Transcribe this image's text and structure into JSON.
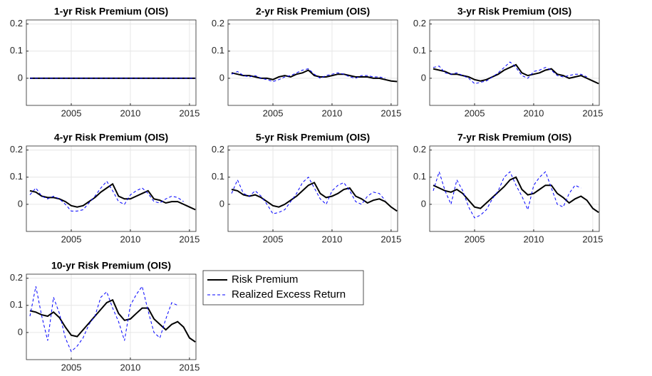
{
  "chart_data": [
    {
      "type": "line",
      "title": "1-yr  Risk Premium (OIS)",
      "xlim": [
        2001.2,
        2015.55
      ],
      "ylim": [
        -0.1,
        0.215
      ],
      "xticks": [
        2005,
        2010,
        2015
      ],
      "yticks": [
        0,
        0.1,
        0.2
      ],
      "grid": true,
      "x": [
        2001.5,
        2002,
        2002.5,
        2003,
        2003.5,
        2004,
        2004.5,
        2005,
        2005.5,
        2006,
        2006.5,
        2007,
        2007.5,
        2008,
        2008.5,
        2009,
        2009.5,
        2010,
        2010.5,
        2011,
        2011.5,
        2012,
        2012.5,
        2013,
        2013.5,
        2014,
        2014.5,
        2015,
        2015.5
      ],
      "series": [
        {
          "name": "Risk Premium",
          "color": "#000000",
          "line_style": "solid",
          "values": [
            0,
            0,
            0,
            0,
            0,
            0,
            0,
            0,
            0,
            0,
            0,
            0,
            0,
            0,
            0,
            0,
            0,
            0,
            0,
            0,
            0,
            0,
            0,
            0,
            0,
            0,
            0,
            0,
            0
          ]
        },
        {
          "name": "Realized Excess Return",
          "color": "#0000ff",
          "line_style": "dashed",
          "values": [
            0,
            0,
            0,
            0,
            0,
            0,
            0,
            0,
            0,
            0,
            0,
            0,
            0,
            0,
            0,
            0,
            0,
            0,
            0,
            0,
            0,
            0,
            0,
            0,
            0,
            0,
            0,
            0,
            0
          ]
        }
      ]
    },
    {
      "type": "line",
      "title": "2-yr  Risk Premium (OIS)",
      "xlim": [
        2001.2,
        2015.55
      ],
      "ylim": [
        -0.1,
        0.215
      ],
      "xticks": [
        2005,
        2010,
        2015
      ],
      "yticks": [
        0,
        0.1,
        0.2
      ],
      "grid": true,
      "x": [
        2001.5,
        2002,
        2002.5,
        2003,
        2003.5,
        2004,
        2004.5,
        2005,
        2005.5,
        2006,
        2006.5,
        2007,
        2007.5,
        2008,
        2008.5,
        2009,
        2009.5,
        2010,
        2010.5,
        2011,
        2011.5,
        2012,
        2012.5,
        2013,
        2013.5,
        2014,
        2014.5,
        2015,
        2015.5
      ],
      "series": [
        {
          "name": "Risk Premium",
          "color": "#000000",
          "line_style": "solid",
          "values": [
            0.02,
            0.015,
            0.01,
            0.01,
            0.005,
            0,
            0,
            -0.005,
            0.005,
            0.01,
            0.005,
            0.015,
            0.02,
            0.03,
            0.01,
            0.005,
            0.005,
            0.01,
            0.015,
            0.015,
            0.01,
            0.005,
            0.005,
            0.005,
            0,
            0,
            -0.005,
            -0.01,
            -0.012
          ]
        },
        {
          "name": "Realized Excess Return",
          "color": "#0000ff",
          "line_style": "dashed",
          "values": [
            0.015,
            0.025,
            0.01,
            0.005,
            0.01,
            0,
            -0.005,
            -0.012,
            -0.005,
            0.005,
            0.01,
            0.02,
            0.03,
            0.035,
            0.015,
            0,
            0.01,
            0.015,
            0.02,
            0.015,
            0.005,
            0,
            0.01,
            0.01,
            0.005,
            0.005,
            0,
            null,
            null
          ]
        }
      ]
    },
    {
      "type": "line",
      "title": "3-yr  Risk Premium (OIS)",
      "xlim": [
        2001.2,
        2015.55
      ],
      "ylim": [
        -0.1,
        0.215
      ],
      "xticks": [
        2005,
        2010,
        2015
      ],
      "yticks": [
        0,
        0.1,
        0.2
      ],
      "grid": true,
      "x": [
        2001.5,
        2002,
        2002.5,
        2003,
        2003.5,
        2004,
        2004.5,
        2005,
        2005.5,
        2006,
        2006.5,
        2007,
        2007.5,
        2008,
        2008.5,
        2009,
        2009.5,
        2010,
        2010.5,
        2011,
        2011.5,
        2012,
        2012.5,
        2013,
        2013.5,
        2014,
        2014.5,
        2015,
        2015.5
      ],
      "series": [
        {
          "name": "Risk Premium",
          "color": "#000000",
          "line_style": "solid",
          "values": [
            0.035,
            0.03,
            0.025,
            0.015,
            0.015,
            0.01,
            0.005,
            -0.005,
            -0.01,
            -0.005,
            0.005,
            0.015,
            0.03,
            0.04,
            0.05,
            0.02,
            0.01,
            0.015,
            0.02,
            0.03,
            0.035,
            0.015,
            0.01,
            0,
            0.005,
            0.01,
            0,
            -0.01,
            -0.02
          ]
        },
        {
          "name": "Realized Excess Return",
          "color": "#0000ff",
          "line_style": "dashed",
          "values": [
            0.04,
            0.045,
            0.02,
            0.015,
            0.02,
            0.01,
            0,
            -0.02,
            -0.015,
            -0.01,
            0.005,
            0.02,
            0.04,
            0.06,
            0.04,
            0.01,
            0,
            0.025,
            0.03,
            0.04,
            0.03,
            0.01,
            0.005,
            0.01,
            0.015,
            0.015,
            0.005,
            null,
            null
          ]
        }
      ]
    },
    {
      "type": "line",
      "title": "4-yr  Risk Premium (OIS)",
      "xlim": [
        2001.2,
        2015.55
      ],
      "ylim": [
        -0.1,
        0.215
      ],
      "xticks": [
        2005,
        2010,
        2015
      ],
      "yticks": [
        0,
        0.1,
        0.2
      ],
      "grid": true,
      "x": [
        2001.5,
        2002,
        2002.5,
        2003,
        2003.5,
        2004,
        2004.5,
        2005,
        2005.5,
        2006,
        2006.5,
        2007,
        2007.5,
        2008,
        2008.5,
        2009,
        2009.5,
        2010,
        2010.5,
        2011,
        2011.5,
        2012,
        2012.5,
        2013,
        2013.5,
        2014,
        2014.5,
        2015,
        2015.5
      ],
      "series": [
        {
          "name": "Risk Premium",
          "color": "#000000",
          "line_style": "solid",
          "values": [
            0.05,
            0.045,
            0.03,
            0.025,
            0.025,
            0.02,
            0.01,
            -0.005,
            -0.01,
            -0.005,
            0.01,
            0.025,
            0.045,
            0.06,
            0.075,
            0.03,
            0.02,
            0.02,
            0.03,
            0.04,
            0.05,
            0.02,
            0.015,
            0.005,
            0.01,
            0.01,
            0,
            -0.01,
            -0.02
          ]
        },
        {
          "name": "Realized Excess Return",
          "color": "#0000ff",
          "line_style": "dashed",
          "values": [
            0.035,
            0.06,
            0.03,
            0.02,
            0.03,
            0.02,
            0,
            -0.025,
            -0.025,
            -0.02,
            0.005,
            0.03,
            0.06,
            0.085,
            0.05,
            0.01,
            0,
            0.035,
            0.05,
            0.06,
            0.04,
            0.01,
            0.005,
            0.02,
            0.03,
            0.025,
            0.01,
            null,
            null
          ]
        }
      ]
    },
    {
      "type": "line",
      "title": "5-yr  Risk Premium (OIS)",
      "xlim": [
        2001.2,
        2015.55
      ],
      "ylim": [
        -0.1,
        0.215
      ],
      "xticks": [
        2005,
        2010,
        2015
      ],
      "yticks": [
        0,
        0.1,
        0.2
      ],
      "grid": true,
      "x": [
        2001.5,
        2002,
        2002.5,
        2003,
        2003.5,
        2004,
        2004.5,
        2005,
        2005.5,
        2006,
        2006.5,
        2007,
        2007.5,
        2008,
        2008.5,
        2009,
        2009.5,
        2010,
        2010.5,
        2011,
        2011.5,
        2012,
        2012.5,
        2013,
        2013.5,
        2014,
        2014.5,
        2015,
        2015.5
      ],
      "series": [
        {
          "name": "Risk Premium",
          "color": "#000000",
          "line_style": "solid",
          "values": [
            0.055,
            0.05,
            0.035,
            0.03,
            0.035,
            0.025,
            0.01,
            -0.005,
            -0.01,
            0,
            0.015,
            0.03,
            0.05,
            0.07,
            0.08,
            0.04,
            0.025,
            0.03,
            0.04,
            0.055,
            0.06,
            0.03,
            0.02,
            0.005,
            0.015,
            0.02,
            0.01,
            -0.01,
            -0.025
          ]
        },
        {
          "name": "Realized Excess Return",
          "color": "#0000ff",
          "line_style": "dashed",
          "values": [
            0.04,
            0.09,
            0.04,
            0.03,
            0.05,
            0.03,
            0,
            -0.035,
            -0.03,
            -0.02,
            0.01,
            0.04,
            0.08,
            0.1,
            0.06,
            0.02,
            0,
            0.05,
            0.07,
            0.08,
            0.05,
            0.01,
            0,
            0.03,
            0.045,
            0.04,
            0.015,
            null,
            null
          ]
        }
      ]
    },
    {
      "type": "line",
      "title": "7-yr  Risk Premium (OIS)",
      "xlim": [
        2001.2,
        2015.55
      ],
      "ylim": [
        -0.1,
        0.215
      ],
      "xticks": [
        2005,
        2010,
        2015
      ],
      "yticks": [
        0,
        0.1,
        0.2
      ],
      "grid": true,
      "x": [
        2001.5,
        2002,
        2002.5,
        2003,
        2003.5,
        2004,
        2004.5,
        2005,
        2005.5,
        2006,
        2006.5,
        2007,
        2007.5,
        2008,
        2008.5,
        2009,
        2009.5,
        2010,
        2010.5,
        2011,
        2011.5,
        2012,
        2012.5,
        2013,
        2013.5,
        2014,
        2014.5,
        2015,
        2015.5
      ],
      "series": [
        {
          "name": "Risk Premium",
          "color": "#000000",
          "line_style": "solid",
          "values": [
            0.07,
            0.06,
            0.05,
            0.045,
            0.055,
            0.04,
            0.015,
            -0.01,
            -0.015,
            0.005,
            0.025,
            0.045,
            0.065,
            0.09,
            0.1,
            0.055,
            0.035,
            0.04,
            0.055,
            0.07,
            0.07,
            0.04,
            0.025,
            0.005,
            0.02,
            0.03,
            0.015,
            -0.015,
            -0.03
          ]
        },
        {
          "name": "Realized Excess Return",
          "color": "#0000ff",
          "line_style": "dashed",
          "values": [
            0.05,
            0.12,
            0.05,
            0,
            0.09,
            0.05,
            -0.01,
            -0.05,
            -0.04,
            -0.02,
            0.02,
            0.05,
            0.1,
            0.12,
            0.07,
            0.03,
            -0.02,
            0.07,
            0.1,
            0.12,
            0.06,
            0,
            -0.01,
            0.04,
            0.07,
            0.06,
            null,
            null,
            null
          ]
        }
      ]
    },
    {
      "type": "line",
      "title": "10-yr  Risk Premium (OIS)",
      "xlim": [
        2001.2,
        2015.55
      ],
      "ylim": [
        -0.1,
        0.215
      ],
      "xticks": [
        2005,
        2010,
        2015
      ],
      "yticks": [
        0,
        0.1,
        0.2
      ],
      "grid": true,
      "legend": "outside-right",
      "x": [
        2001.5,
        2002,
        2002.5,
        2003,
        2003.5,
        2004,
        2004.5,
        2005,
        2005.5,
        2006,
        2006.5,
        2007,
        2007.5,
        2008,
        2008.5,
        2009,
        2009.5,
        2010,
        2010.5,
        2011,
        2011.5,
        2012,
        2012.5,
        2013,
        2013.5,
        2014,
        2014.5,
        2015,
        2015.5
      ],
      "series": [
        {
          "name": "Risk Premium",
          "color": "#000000",
          "line_style": "solid",
          "values": [
            0.08,
            0.075,
            0.065,
            0.06,
            0.075,
            0.055,
            0.02,
            -0.01,
            -0.015,
            0.01,
            0.035,
            0.06,
            0.085,
            0.11,
            0.12,
            0.07,
            0.045,
            0.05,
            0.07,
            0.09,
            0.09,
            0.05,
            0.03,
            0.01,
            0.03,
            0.04,
            0.02,
            -0.02,
            -0.035
          ]
        },
        {
          "name": "Realized Excess Return",
          "color": "#0000ff",
          "line_style": "dashed",
          "values": [
            0.06,
            0.17,
            0.06,
            -0.03,
            0.13,
            0.07,
            -0.02,
            -0.07,
            -0.05,
            -0.02,
            0.03,
            0.06,
            0.13,
            0.15,
            0.09,
            0.04,
            -0.03,
            0.1,
            0.14,
            0.17,
            0.08,
            0,
            -0.02,
            0.05,
            0.11,
            0.1,
            null,
            null,
            null
          ]
        }
      ]
    }
  ]
}
